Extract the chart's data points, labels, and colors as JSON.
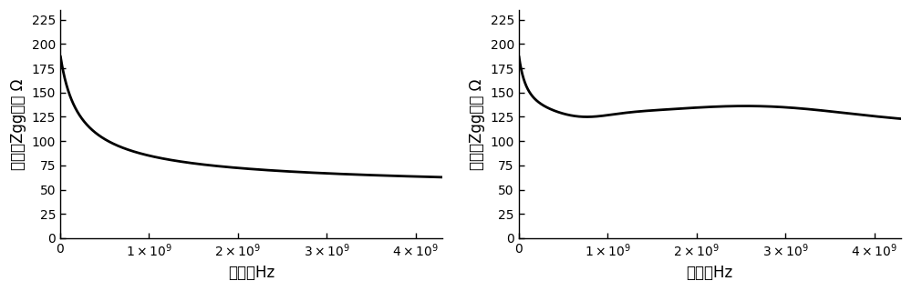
{
  "xlim": [
    0,
    4300000000.0
  ],
  "ylim": [
    0,
    235
  ],
  "yticks": [
    0,
    25,
    50,
    75,
    100,
    125,
    150,
    175,
    200,
    225
  ],
  "xticks": [
    0,
    1000000000.0,
    2000000000.0,
    3000000000.0,
    4000000000.0
  ],
  "ylabel_cn": "幅度（Zgg）， Ω",
  "xlabel_cn": "频率，Hz",
  "line_color": "#000000",
  "line_width": 2.0,
  "bg_color": "#ffffff",
  "tick_fontsize": 10,
  "label_fontsize": 12
}
